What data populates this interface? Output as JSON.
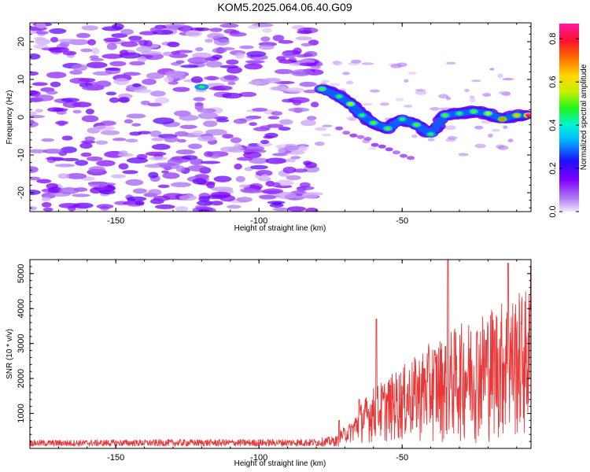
{
  "title": "KOM5.2025.064.06.40.G09",
  "colors": {
    "snr_line": "#e8393a",
    "frame": "#000000"
  },
  "chart_data": [
    {
      "type": "heatmap",
      "xlabel": "Height of straight line (km)",
      "ylabel": "Frequency (Hz)",
      "xlim": [
        -180,
        -5
      ],
      "ylim": [
        -25,
        25
      ],
      "xticks": [
        -150,
        -100,
        -50
      ],
      "yticks": [
        20,
        10,
        0,
        -10,
        -20
      ],
      "colorbar": {
        "label": "Normalized spectral amplitude",
        "range": [
          0.0,
          0.87
        ],
        "ticks": [
          0.0,
          0.2,
          0.4,
          0.6,
          0.8
        ],
        "colormap": "rainbow (purple-blue-cyan-green-yellow-red-magenta)"
      },
      "ridge": [
        {
          "x": -78,
          "y": 7.5,
          "v": 0.5
        },
        {
          "x": -72,
          "y": 5.5,
          "v": 0.45
        },
        {
          "x": -68,
          "y": 3.5,
          "v": 0.55
        },
        {
          "x": -64,
          "y": 0.5,
          "v": 0.45
        },
        {
          "x": -60,
          "y": -1.5,
          "v": 0.5
        },
        {
          "x": -55,
          "y": -3.0,
          "v": 0.5
        },
        {
          "x": -50,
          "y": -0.5,
          "v": 0.45
        },
        {
          "x": -45,
          "y": -2.0,
          "v": 0.5
        },
        {
          "x": -40,
          "y": -4.5,
          "v": 0.45
        },
        {
          "x": -35,
          "y": 0.5,
          "v": 0.5
        },
        {
          "x": -30,
          "y": 1.0,
          "v": 0.45
        },
        {
          "x": -25,
          "y": 1.5,
          "v": 0.5
        },
        {
          "x": -20,
          "y": 1.0,
          "v": 0.55
        },
        {
          "x": -15,
          "y": -0.5,
          "v": 0.7
        },
        {
          "x": -10,
          "y": 0.5,
          "v": 0.65
        },
        {
          "x": -6,
          "y": 0.5,
          "v": 0.85
        }
      ]
    },
    {
      "type": "line",
      "xlabel": "Height of straight line (km)",
      "ylabel": "SNR (10 * v/v)",
      "xlim": [
        -180,
        -5
      ],
      "ylim": [
        0,
        5400
      ],
      "xticks": [
        -150,
        -100,
        -50
      ],
      "yticks": [
        1000,
        2000,
        3000,
        4000,
        5000
      ],
      "series": [
        {
          "envelope": [
            {
              "x": -180,
              "y": 220
            },
            {
              "x": -150,
              "y": 230
            },
            {
              "x": -120,
              "y": 240
            },
            {
              "x": -100,
              "y": 240
            },
            {
              "x": -80,
              "y": 260
            },
            {
              "x": -72,
              "y": 350
            },
            {
              "x": -68,
              "y": 600
            },
            {
              "x": -64,
              "y": 1200
            },
            {
              "x": -60,
              "y": 1600
            },
            {
              "x": -55,
              "y": 1900
            },
            {
              "x": -50,
              "y": 2200
            },
            {
              "x": -45,
              "y": 2500
            },
            {
              "x": -40,
              "y": 2900
            },
            {
              "x": -35,
              "y": 3100
            },
            {
              "x": -30,
              "y": 3400
            },
            {
              "x": -25,
              "y": 3600
            },
            {
              "x": -20,
              "y": 3900
            },
            {
              "x": -15,
              "y": 4100
            },
            {
              "x": -10,
              "y": 4300
            },
            {
              "x": -5,
              "y": 4500
            }
          ],
          "peaks": [
            {
              "x": -72,
              "y": 800
            },
            {
              "x": -65,
              "y": 1400
            },
            {
              "x": -59,
              "y": 3700
            },
            {
              "x": -34,
              "y": 5400
            },
            {
              "x": -13,
              "y": 5300
            },
            {
              "x": -5,
              "y": 5200
            }
          ]
        }
      ]
    }
  ]
}
